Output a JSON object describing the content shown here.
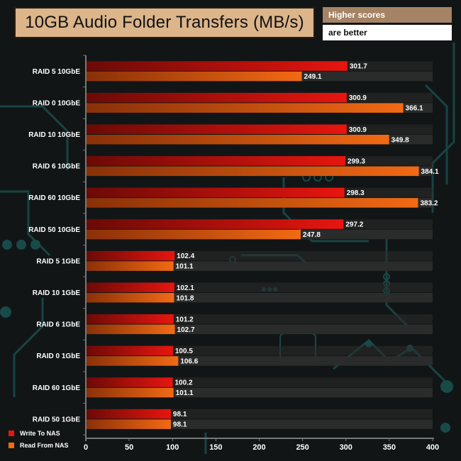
{
  "title_box": {
    "title": "10GB Audio Folder Transfers (MB/s)"
  },
  "note": {
    "line1": "Higher scores",
    "line2": "are better"
  },
  "colors": {
    "write": "#e8150f",
    "write_dark": "#6b0a06",
    "read": "#f26a14",
    "read_dark": "#8a3008",
    "stripe": "#2c2c2c",
    "axis": "#777777"
  },
  "chart_data": {
    "type": "bar",
    "orientation": "horizontal",
    "title": "10GB Audio Folder Transfers (MB/s)",
    "xlabel": "",
    "ylabel": "",
    "xlim": [
      0,
      400
    ],
    "x_ticks": [
      0,
      50,
      100,
      150,
      200,
      250,
      300,
      350,
      400
    ],
    "legend_position": "bottom-left",
    "categories": [
      "RAID 5 10GbE",
      "RAID 0 10GbE",
      "RAID 10 10GbE",
      "RAID 6 10GbE",
      "RAID 60 10GbE",
      "RAID 50 10GbE",
      "RAID 5 1GbE",
      "RAID 10 1GbE",
      "RAID 6 1GbE",
      "RAID 0 1GbE",
      "RAID 60 1GbE",
      "RAID 50 1GbE"
    ],
    "series": [
      {
        "name": "Write To NAS",
        "values": [
          301.7,
          300.9,
          300.9,
          299.3,
          298.3,
          297.2,
          102.4,
          102.1,
          101.2,
          100.5,
          100.2,
          98.1
        ],
        "labels": [
          "301.7",
          "300.9",
          "300.9",
          "299.3",
          "298.3",
          "297.2",
          "102.4",
          "102.1",
          "101.2",
          "100.5",
          "100.2",
          "98.1"
        ]
      },
      {
        "name": "Read From NAS",
        "values": [
          249.1,
          366.1,
          349.8,
          384.1,
          383.2,
          247.8,
          101.1,
          101.8,
          102.7,
          106.6,
          101.1,
          98.1
        ],
        "labels": [
          "249.1",
          "366.1",
          "349.8",
          "384.1",
          "383.2",
          "247.8",
          "101.1",
          "101.8",
          "102.7",
          "106.6",
          "101.1",
          "98.1"
        ]
      }
    ]
  }
}
